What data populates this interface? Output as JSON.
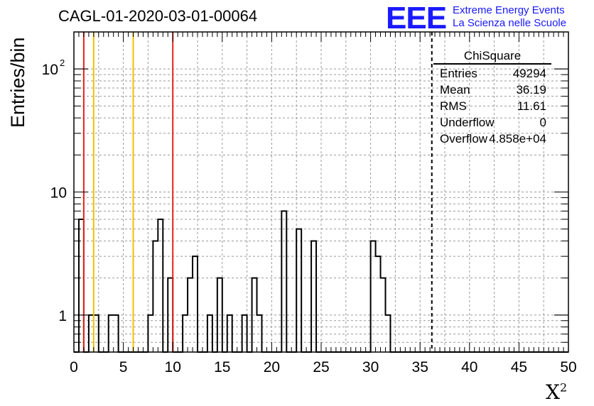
{
  "title": "CAGL-01-2020-03-01-00064",
  "logo": {
    "mark": "EEE",
    "line1": "Extreme Energy Events",
    "line2": "La Scienza nelle Scuole",
    "color": "#1a1aff"
  },
  "stats": {
    "title": "ChiSquare",
    "rows": [
      {
        "key": "Entries",
        "value": "49294"
      },
      {
        "key": "Mean",
        "value": "36.19"
      },
      {
        "key": "RMS",
        "value": "11.61"
      },
      {
        "key": "Underflow",
        "value": "0"
      },
      {
        "key": "Overflow",
        "value": "4.858e+04"
      }
    ]
  },
  "chart_data": {
    "type": "histogram",
    "xlabel": "X",
    "xlabel_sup": "2",
    "ylabel": "Entries/bin",
    "xlim": [
      0,
      50
    ],
    "ylim": [
      0.5,
      200
    ],
    "yscale": "log",
    "grid": true,
    "xticks": [
      "0",
      "5",
      "10",
      "15",
      "20",
      "25",
      "30",
      "35",
      "40",
      "45",
      "50"
    ],
    "yticks": [
      {
        "value": 1,
        "label": "1"
      },
      {
        "value": 10,
        "label": "10"
      },
      {
        "value": 100,
        "label": "10",
        "sup": "2"
      }
    ],
    "bin_width": 0.5,
    "counts": [
      0,
      6,
      0,
      1,
      1,
      0,
      0,
      1,
      1,
      0,
      0,
      0,
      0,
      0,
      0,
      1,
      4,
      6,
      0,
      2,
      0,
      0,
      1,
      2,
      3,
      0,
      0,
      1,
      0,
      2,
      0,
      1,
      0,
      0,
      1,
      0,
      2,
      1,
      0,
      0,
      0,
      0,
      7,
      0,
      0,
      5,
      0,
      0,
      4,
      0,
      0,
      0,
      0,
      0,
      0,
      0,
      0,
      0,
      0,
      0,
      4,
      3,
      2,
      1,
      0,
      0,
      0,
      0,
      0,
      0,
      0,
      0,
      0,
      0,
      0,
      0,
      0,
      0,
      0,
      0,
      0,
      0,
      0,
      0,
      0,
      0,
      0,
      0,
      0,
      0,
      0,
      0,
      0,
      0,
      0,
      0,
      0,
      0,
      0,
      0
    ],
    "vlines": [
      {
        "x": 1,
        "color": "#e8221c"
      },
      {
        "x": 2,
        "color": "#f2c100"
      },
      {
        "x": 6,
        "color": "#f2c100"
      },
      {
        "x": 10,
        "color": "#e8221c"
      },
      {
        "x": 36.19,
        "color": "#000000",
        "style": "dashed"
      }
    ]
  }
}
